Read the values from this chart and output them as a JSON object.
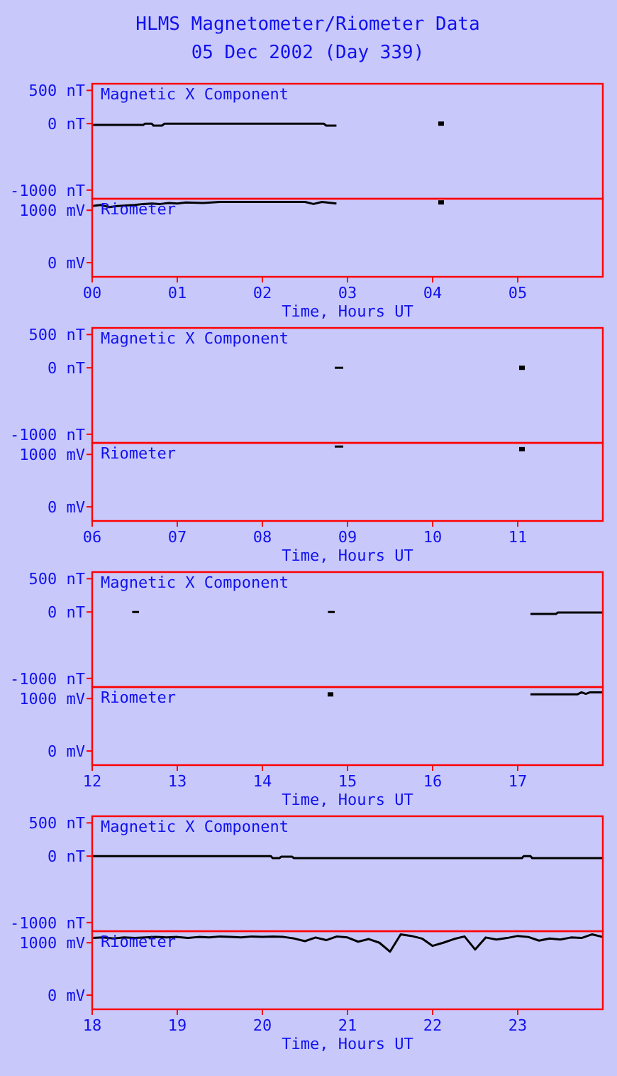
{
  "chart_data": [
    {
      "type": "line",
      "title": "Magnetic X Component",
      "annotations": [
        "HLMS Magnetometer/Riometer Data",
        "05 Dec 2002 (Day 339)"
      ],
      "xlim": [
        0,
        6
      ],
      "ylim": [
        -1130,
        600
      ],
      "yticks": [
        {
          "value": 500,
          "label": "500 nT"
        },
        {
          "value": 0,
          "label": "0 nT"
        },
        {
          "value": -1000,
          "label": "-1000 nT"
        }
      ],
      "tick_labels": "y",
      "grid": false,
      "series": [
        {
          "color": "#000000",
          "x": [
            0,
            0.6,
            0.62,
            0.7,
            0.72,
            0.82,
            0.85,
            2.72,
            2.75,
            2.87
          ],
          "values": [
            -20,
            -20,
            0,
            0,
            -30,
            -30,
            0,
            0,
            -30,
            -30
          ]
        },
        {
          "type": "scatter",
          "marker": "square",
          "color": "#000000",
          "x": [
            4.1
          ],
          "values": [
            0
          ]
        }
      ]
    },
    {
      "type": "line",
      "title": "Riometer",
      "xlabel": "Time, Hours UT",
      "xlim": [
        0,
        6
      ],
      "xticks": [
        {
          "value": 0,
          "label": "00"
        },
        {
          "value": 1,
          "label": "01"
        },
        {
          "value": 2,
          "label": "02"
        },
        {
          "value": 3,
          "label": "03"
        },
        {
          "value": 4,
          "label": "04"
        },
        {
          "value": 5,
          "label": "05"
        }
      ],
      "ylim": [
        -270,
        1220
      ],
      "yticks": [
        {
          "value": 1000,
          "label": "1000 mV"
        },
        {
          "value": 0,
          "label": "0 mV"
        }
      ],
      "grid": false,
      "series": [
        {
          "color": "#000000",
          "x": [
            0,
            0.1,
            0.2,
            0.3,
            0.4,
            0.5,
            0.6,
            0.7,
            0.8,
            0.9,
            1.0,
            1.1,
            1.3,
            1.5,
            2.0,
            2.5,
            2.6,
            2.7,
            2.87
          ],
          "values": [
            1080,
            1100,
            1060,
            1080,
            1090,
            1100,
            1120,
            1130,
            1120,
            1140,
            1130,
            1150,
            1140,
            1160,
            1160,
            1160,
            1120,
            1160,
            1130
          ]
        },
        {
          "type": "scatter",
          "marker": "square",
          "color": "#000000",
          "x": [
            4.1
          ],
          "values": [
            1150
          ]
        }
      ]
    },
    {
      "type": "line",
      "title": "Magnetic X Component",
      "xlim": [
        6,
        12
      ],
      "ylim": [
        -1130,
        600
      ],
      "yticks": [
        {
          "value": 500,
          "label": "500 nT"
        },
        {
          "value": 0,
          "label": "0 nT"
        },
        {
          "value": -1000,
          "label": "-1000 nT"
        }
      ],
      "tick_labels": "y",
      "grid": false,
      "series": [
        {
          "color": "#000000",
          "x": [
            8.85,
            8.95
          ],
          "values": [
            0,
            0
          ]
        },
        {
          "type": "scatter",
          "marker": "square",
          "color": "#000000",
          "x": [
            11.05
          ],
          "values": [
            0
          ]
        }
      ]
    },
    {
      "type": "line",
      "title": "Riometer",
      "xlabel": "Time, Hours UT",
      "xlim": [
        6,
        12
      ],
      "xticks": [
        {
          "value": 6,
          "label": "06"
        },
        {
          "value": 7,
          "label": "07"
        },
        {
          "value": 8,
          "label": "08"
        },
        {
          "value": 9,
          "label": "09"
        },
        10,
        11
      ],
      "ylim": [
        -270,
        1220
      ],
      "yticks": [
        {
          "value": 1000,
          "label": "1000 mV"
        },
        {
          "value": 0,
          "label": "0 mV"
        }
      ],
      "grid": false,
      "series": [
        {
          "color": "#000000",
          "x": [
            8.85,
            8.95
          ],
          "values": [
            1150,
            1150
          ]
        },
        {
          "type": "scatter",
          "marker": "square",
          "color": "#000000",
          "x": [
            11.05
          ],
          "values": [
            1100
          ]
        }
      ]
    },
    {
      "type": "line",
      "title": "Magnetic X Component",
      "xlim": [
        12,
        18
      ],
      "ylim": [
        -1130,
        600
      ],
      "yticks": [
        {
          "value": 500,
          "label": "500 nT"
        },
        {
          "value": 0,
          "label": "0 nT"
        },
        {
          "value": -1000,
          "label": "-1000 nT"
        }
      ],
      "tick_labels": "y",
      "grid": false,
      "series": [
        {
          "color": "#000000",
          "x": [
            12.47,
            12.55,
            13.5,
            14.77,
            14.85,
            15.5,
            17.15,
            17.45,
            17.47,
            18
          ],
          "values": [
            0,
            0,
            null,
            0,
            0,
            null,
            -30,
            -30,
            -10,
            -10
          ]
        }
      ]
    },
    {
      "type": "line",
      "title": "Riometer",
      "xlabel": "Time, Hours UT",
      "xlim": [
        12,
        18
      ],
      "xticks": [
        12,
        13,
        14,
        15,
        16,
        17
      ],
      "ylim": [
        -270,
        1220
      ],
      "yticks": [
        {
          "value": 1000,
          "label": "1000 mV"
        },
        {
          "value": 0,
          "label": "0 mV"
        }
      ],
      "grid": false,
      "series": [
        {
          "color": "#000000",
          "x": [
            17.15,
            17.7,
            17.75,
            17.8,
            17.85,
            18
          ],
          "values": [
            1080,
            1080,
            1120,
            1090,
            1120,
            1120
          ]
        },
        {
          "type": "scatter",
          "marker": "square",
          "color": "#000000",
          "x": [
            14.8
          ],
          "values": [
            1080
          ]
        }
      ]
    },
    {
      "type": "line",
      "title": "Magnetic X Component",
      "xlim": [
        18,
        24
      ],
      "ylim": [
        -1130,
        600
      ],
      "yticks": [
        {
          "value": 500,
          "label": "500 nT"
        },
        {
          "value": 0,
          "label": "0 nT"
        },
        {
          "value": -1000,
          "label": "-1000 nT"
        }
      ],
      "tick_labels": "y",
      "grid": false,
      "series": [
        {
          "color": "#000000",
          "x": [
            18,
            20.1,
            20.12,
            20.2,
            20.22,
            20.35,
            20.37,
            23.05,
            23.07,
            23.15,
            23.17,
            24
          ],
          "values": [
            0,
            0,
            -30,
            -30,
            -10,
            -10,
            -30,
            -30,
            0,
            0,
            -30,
            -30
          ]
        }
      ]
    },
    {
      "type": "line",
      "title": "Riometer",
      "xlabel": "Time, Hours UT",
      "xlim": [
        18,
        24
      ],
      "xticks": [
        18,
        19,
        20,
        21,
        22,
        23
      ],
      "ylim": [
        -270,
        1220
      ],
      "yticks": [
        {
          "value": 1000,
          "label": "1000 mV"
        },
        {
          "value": 0,
          "label": "0 mV"
        }
      ],
      "grid": false,
      "series": [
        {
          "color": "#000000",
          "x": [
            18,
            18.125,
            18.25,
            18.375,
            18.5,
            18.625,
            18.75,
            18.875,
            19,
            19.125,
            19.25,
            19.375,
            19.5,
            19.625,
            19.75,
            19.875,
            20,
            20.125,
            20.25,
            20.375,
            20.5,
            20.625,
            20.75,
            20.875,
            21,
            21.125,
            21.25,
            21.375,
            21.5,
            21.625,
            21.75,
            21.875,
            22,
            22.125,
            22.25,
            22.375,
            22.5,
            22.625,
            22.75,
            22.875,
            23,
            23.125,
            23.25,
            23.375,
            23.5,
            23.625,
            23.75,
            23.875,
            24
          ],
          "values": [
            1090,
            1100,
            1080,
            1100,
            1090,
            1100,
            1110,
            1100,
            1110,
            1090,
            1110,
            1100,
            1120,
            1110,
            1100,
            1120,
            1110,
            1120,
            1110,
            1080,
            1030,
            1100,
            1050,
            1120,
            1100,
            1020,
            1070,
            1000,
            830,
            1160,
            1130,
            1080,
            940,
            1000,
            1070,
            1120,
            870,
            1100,
            1060,
            1090,
            1130,
            1110,
            1040,
            1080,
            1060,
            1100,
            1090,
            1160,
            1110
          ]
        }
      ]
    }
  ]
}
